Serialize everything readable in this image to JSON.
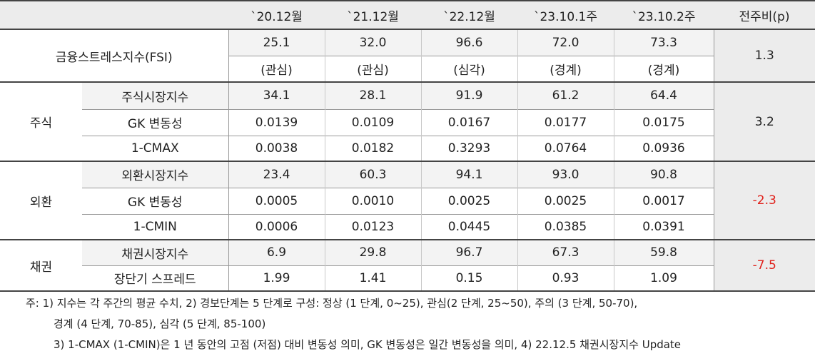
{
  "header": [
    "`20.12월",
    "`21.12월",
    "`22.12월",
    "`23.10.1주",
    "`23.10.2주",
    "전주비(p)"
  ],
  "fsi": {
    "label": "금융스트레스지수(FSI)",
    "values": [
      "25.1",
      "32.0",
      "96.6",
      "72.0",
      "73.3"
    ],
    "levels": [
      "(관심)",
      "(관심)",
      "(심각)",
      "(경계)",
      "(경계)"
    ],
    "change": "1.3"
  },
  "groups": [
    {
      "name": "주식",
      "change": "3.2",
      "rows": [
        {
          "label": "주식시장지수",
          "values": [
            "34.1",
            "28.1",
            "91.9",
            "61.2",
            "64.4"
          ]
        },
        {
          "label": "GK 변동성",
          "values": [
            "0.0139",
            "0.0109",
            "0.0167",
            "0.0177",
            "0.0175"
          ]
        },
        {
          "label": "1-CMAX",
          "values": [
            "0.0038",
            "0.0182",
            "0.3293",
            "0.0764",
            "0.0936"
          ]
        }
      ]
    },
    {
      "name": "외환",
      "change": "-2.3",
      "rows": [
        {
          "label": "외환시장지수",
          "values": [
            "23.4",
            "60.3",
            "94.1",
            "93.0",
            "90.8"
          ]
        },
        {
          "label": "GK 변동성",
          "values": [
            "0.0005",
            "0.0010",
            "0.0025",
            "0.0025",
            "0.0017"
          ]
        },
        {
          "label": "1-CMIN",
          "values": [
            "0.0006",
            "0.0123",
            "0.0445",
            "0.0385",
            "0.0391"
          ]
        }
      ]
    },
    {
      "name": "채권",
      "change": "-7.5",
      "rows": [
        {
          "label": "채권시장지수",
          "values": [
            "6.9",
            "29.8",
            "96.7",
            "67.3",
            "59.8"
          ]
        },
        {
          "label": "장단기 스프레드",
          "values": [
            "1.99",
            "1.41",
            "0.15",
            "0.93",
            "1.09"
          ]
        }
      ]
    }
  ],
  "notes": [
    "주: 1) 지수는 각 주간의 평균 수치, 2) 경보단계는 5 단계로 구성: 정상 (1 단계, 0~25), 관심(2 단계, 25~50), 주의 (3 단계, 50-70),",
    "경계 (4 단계, 70-85), 심각 (5 단계, 85-100)",
    "3) 1-CMAX (1-CMIN)은 1 년 동안의 고점 (저점) 대비 변동성 의미, GK 변동성은 일간 변동성을 의미, 4) 22.12.5 채권시장지수 Update"
  ]
}
